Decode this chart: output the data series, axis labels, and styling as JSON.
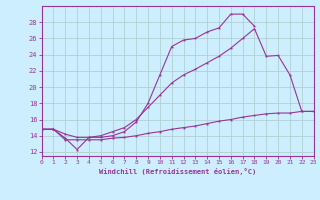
{
  "xlabel": "Windchill (Refroidissement éolien,°C)",
  "bg_color": "#cceeff",
  "grid_color": "#aacccc",
  "line_color": "#993399",
  "xlim": [
    0,
    23
  ],
  "ylim": [
    11.5,
    30
  ],
  "xticks": [
    0,
    1,
    2,
    3,
    4,
    5,
    6,
    7,
    8,
    9,
    10,
    11,
    12,
    13,
    14,
    15,
    16,
    17,
    18,
    19,
    20,
    21,
    22,
    23
  ],
  "yticks": [
    12,
    14,
    16,
    18,
    20,
    22,
    24,
    26,
    28
  ],
  "curve1_x": [
    0,
    1,
    2,
    3,
    4,
    5,
    6,
    7,
    8,
    9,
    10,
    11,
    12,
    13,
    14,
    15,
    16,
    17,
    18
  ],
  "curve1_y": [
    14.8,
    14.8,
    13.7,
    12.3,
    13.8,
    13.8,
    14.0,
    14.5,
    15.7,
    18.0,
    21.5,
    25.0,
    25.8,
    26.0,
    26.8,
    27.3,
    29.0,
    29.0,
    27.5
  ],
  "curve2_x": [
    0,
    1,
    2,
    3,
    4,
    5,
    6,
    7,
    8,
    9,
    10,
    11,
    12,
    13,
    14,
    15,
    16,
    17,
    18,
    19,
    20,
    21,
    22,
    23
  ],
  "curve2_y": [
    14.8,
    14.8,
    14.2,
    13.8,
    13.8,
    14.0,
    14.5,
    15.0,
    16.0,
    17.5,
    19.0,
    20.5,
    21.5,
    22.2,
    23.0,
    23.8,
    24.8,
    26.0,
    27.2,
    23.8,
    23.9,
    21.5,
    17.0,
    17.0
  ],
  "curve3_x": [
    0,
    1,
    2,
    3,
    4,
    5,
    6,
    7,
    8,
    9,
    10,
    11,
    12,
    13,
    14,
    15,
    16,
    17,
    18,
    19,
    20,
    21,
    22,
    23
  ],
  "curve3_y": [
    14.8,
    14.8,
    13.5,
    13.5,
    13.5,
    13.5,
    13.7,
    13.8,
    14.0,
    14.3,
    14.5,
    14.8,
    15.0,
    15.2,
    15.5,
    15.8,
    16.0,
    16.3,
    16.5,
    16.7,
    16.8,
    16.8,
    17.0,
    17.0
  ]
}
